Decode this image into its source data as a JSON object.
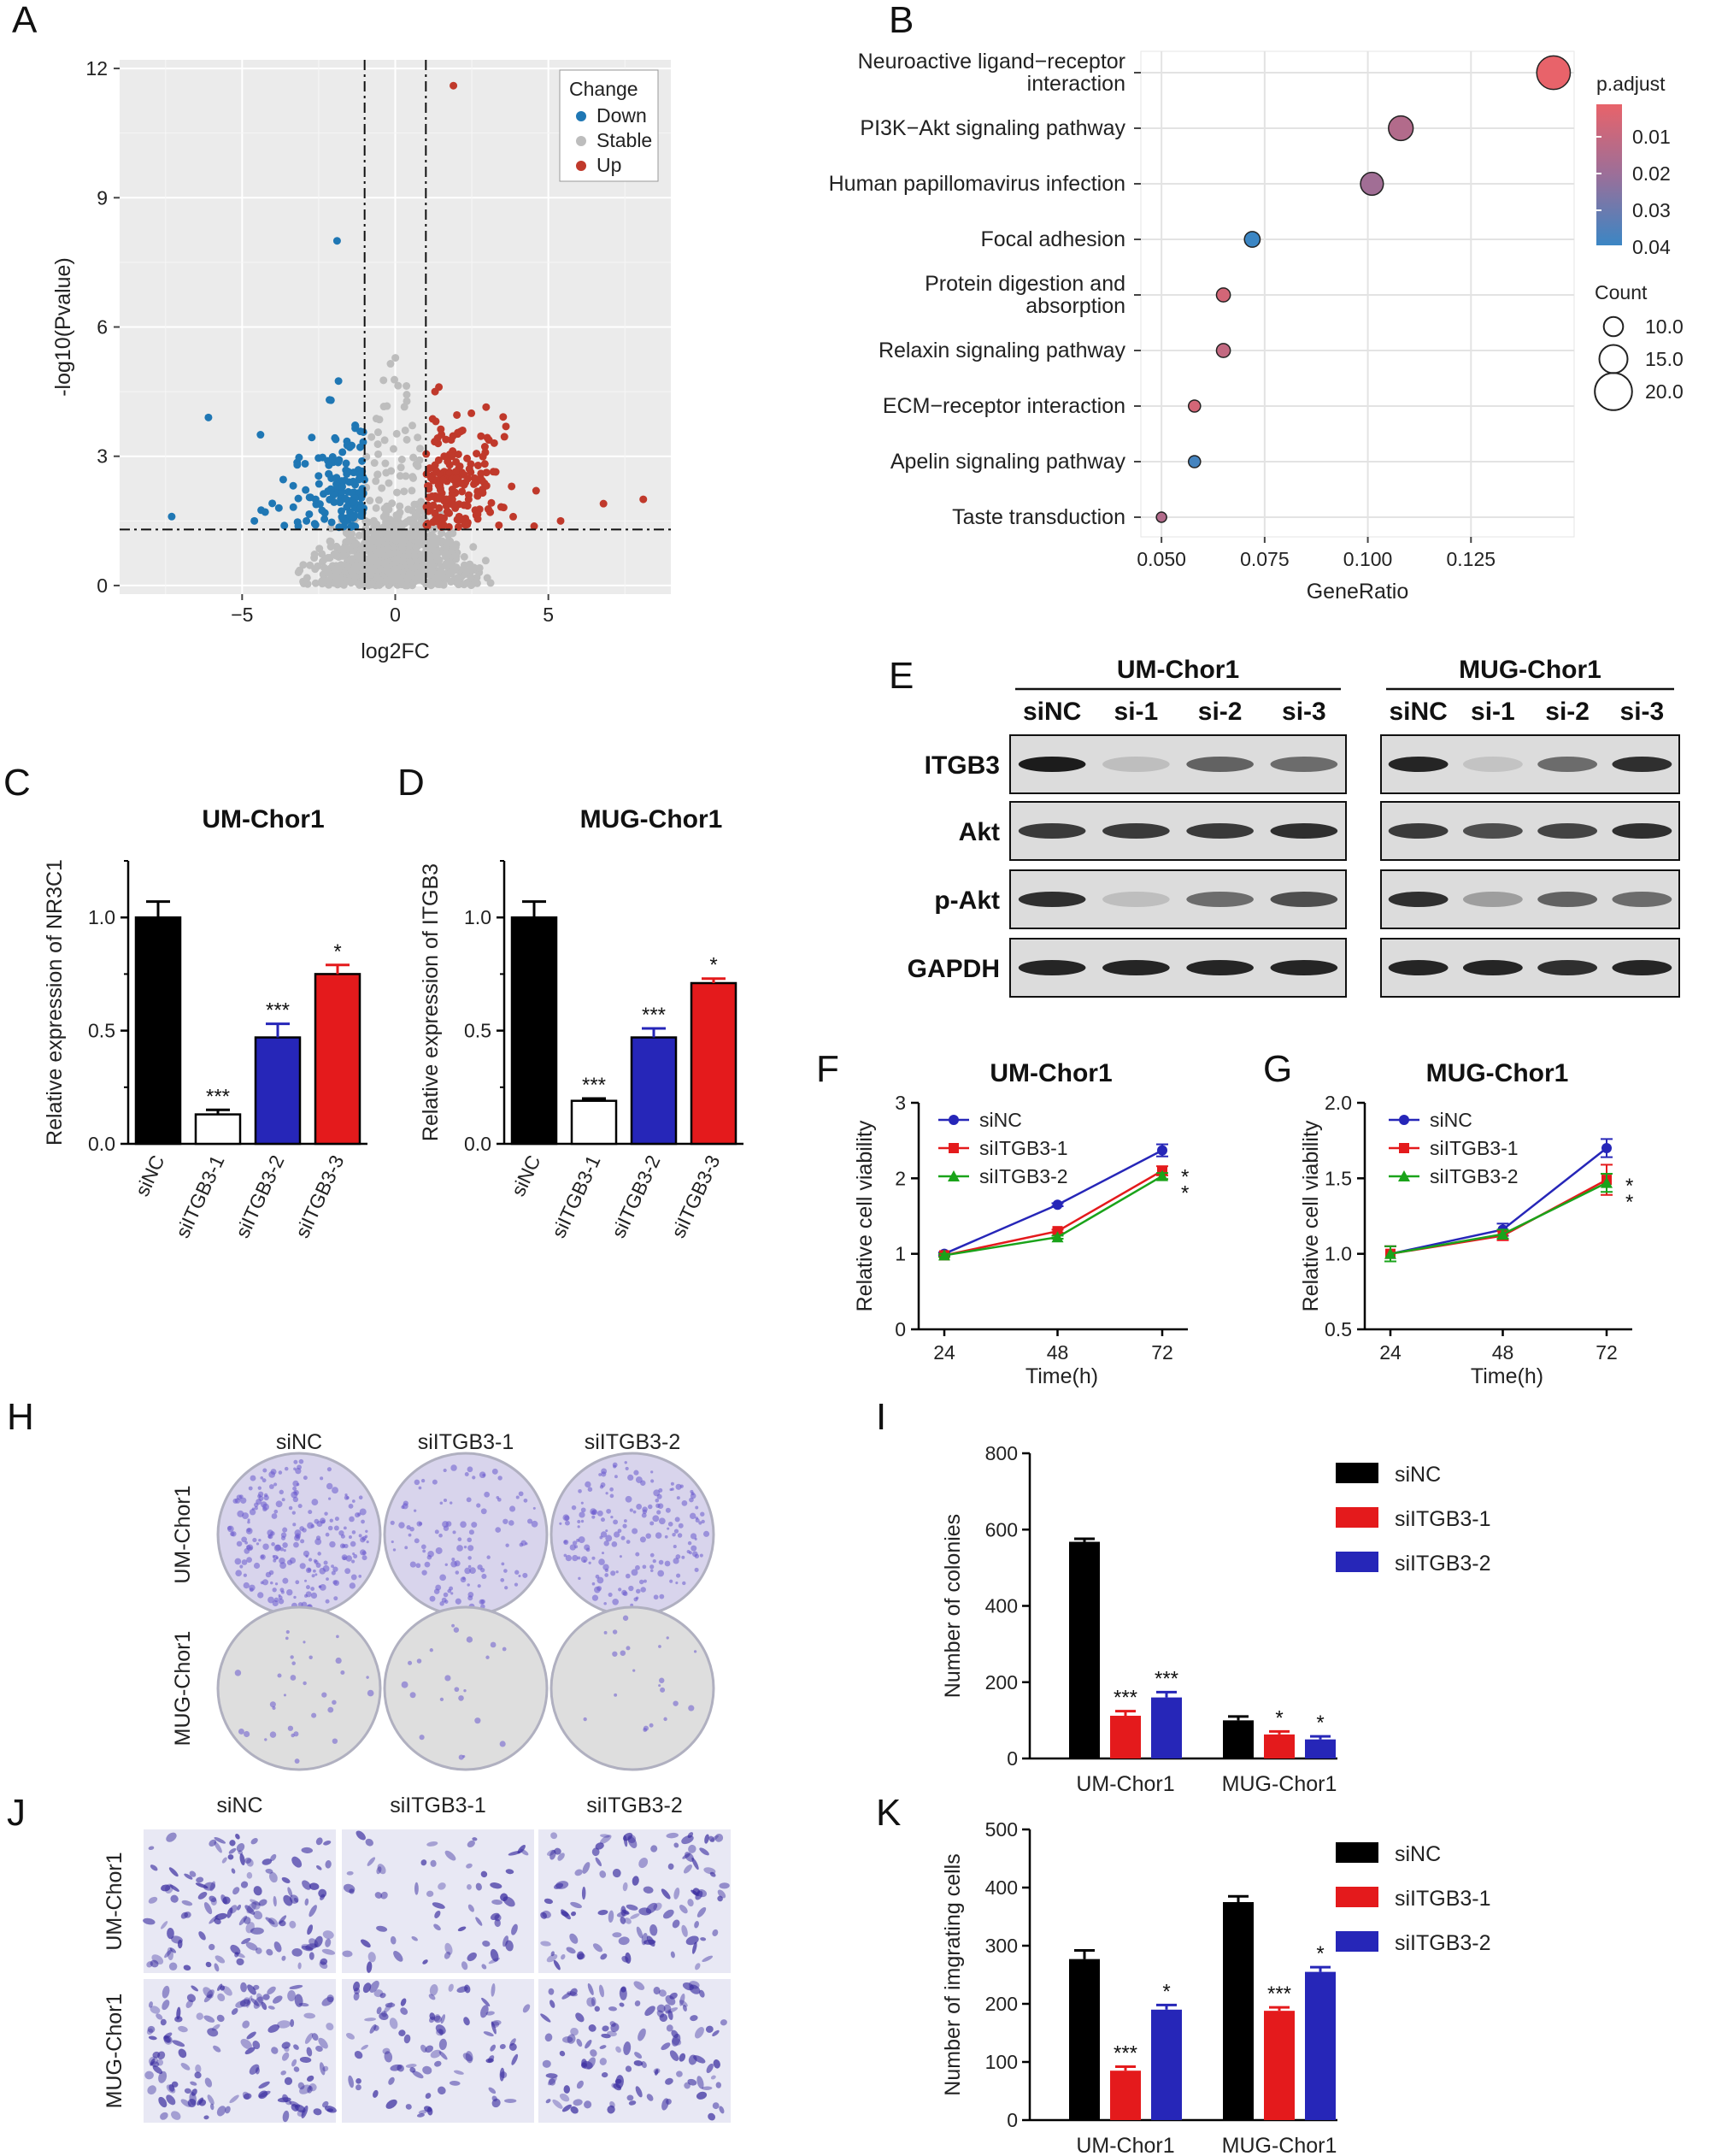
{
  "panels": {
    "A": "A",
    "B": "B",
    "C": "C",
    "D": "D",
    "E": "E",
    "F": "F",
    "G": "G",
    "H": "H",
    "I": "I",
    "J": "J",
    "K": "K"
  },
  "colors": {
    "black": "#000000",
    "red": "#e41a1c",
    "blue": "#2626b8",
    "green": "#1aa31a",
    "volcano_down": "#1f77b4",
    "volcano_stable": "#bdbdbd",
    "volcano_up": "#c0392b",
    "padj_low": "#e8636a",
    "padj_high": "#3b86c4"
  },
  "chart_data": [
    {
      "id": "A",
      "type": "scatter",
      "title": "",
      "xlabel": "log2FC",
      "ylabel": "-log10(Pvalue)",
      "xlim": [
        -9,
        9
      ],
      "ylim": [
        -0.2,
        12.2
      ],
      "xticks": [
        -5,
        0,
        5
      ],
      "yticks": [
        0,
        3,
        6,
        9,
        12
      ],
      "thresholds": {
        "x": [
          -1,
          1
        ],
        "y": 1.3
      },
      "legend_title": "Change",
      "legend": [
        "Down",
        "Stable",
        "Up"
      ],
      "highlight_points": {
        "Down": [
          [
            -1.9,
            8.0
          ],
          [
            -6.1,
            3.9
          ],
          [
            -4.4,
            3.5
          ],
          [
            -7.3,
            1.6
          ],
          [
            -4.6,
            1.5
          ],
          [
            -3.2,
            2.8
          ],
          [
            -2.1,
            4.3
          ],
          [
            -1.3,
            3.7
          ],
          [
            -2.6,
            2.0
          ],
          [
            -3.8,
            1.8
          ],
          [
            -1.5,
            2.4
          ],
          [
            -2.9,
            1.5
          ]
        ],
        "Up": [
          [
            1.9,
            11.6
          ],
          [
            1.3,
            4.5
          ],
          [
            2.2,
            3.6
          ],
          [
            3.8,
            2.3
          ],
          [
            4.6,
            2.2
          ],
          [
            6.8,
            1.9
          ],
          [
            8.1,
            2.0
          ],
          [
            5.4,
            1.5
          ],
          [
            2.8,
            2.6
          ],
          [
            1.6,
            3.0
          ],
          [
            3.1,
            1.7
          ],
          [
            2.4,
            2.1
          ]
        ]
      }
    },
    {
      "id": "B",
      "type": "scatter",
      "title": "",
      "xlabel": "GeneRatio",
      "ylabel": "",
      "xlim": [
        0.045,
        0.15
      ],
      "xticks": [
        0.05,
        0.075,
        0.1,
        0.125
      ],
      "xticklabels": [
        "0.050",
        "0.075",
        "0.100",
        "0.125"
      ],
      "categories": [
        "Neuroactive ligand−receptor interaction",
        "PI3K−Akt signaling pathway",
        "Human papillomavirus infection",
        "Focal adhesion",
        "Protein digestion and absorption",
        "Relaxin signaling pathway",
        "ECM−receptor interaction",
        "Apelin signaling pathway",
        "Taste transduction"
      ],
      "category_lines": [
        [
          "Neuroactive ligand−receptor",
          "interaction"
        ],
        [
          "PI3K−Akt signaling pathway"
        ],
        [
          "Human papillomavirus infection"
        ],
        [
          "Focal adhesion"
        ],
        [
          "Protein digestion and",
          "absorption"
        ],
        [
          "Relaxin signaling pathway"
        ],
        [
          "ECM−receptor interaction"
        ],
        [
          "Apelin signaling pathway"
        ],
        [
          "Taste transduction"
        ]
      ],
      "gene_ratio": [
        0.145,
        0.108,
        0.101,
        0.072,
        0.065,
        0.065,
        0.058,
        0.058,
        0.05
      ],
      "p_adjust": [
        0.005,
        0.018,
        0.022,
        0.042,
        0.01,
        0.014,
        0.01,
        0.04,
        0.018
      ],
      "count": [
        20,
        15,
        14,
        10,
        9,
        9,
        8,
        8,
        7
      ],
      "colorbar_title": "p.adjust",
      "colorbar_ticks": [
        "0.01",
        "0.02",
        "0.03",
        "0.04"
      ],
      "size_title": "Count",
      "size_labels": [
        "10.0",
        "15.0",
        "20.0"
      ]
    },
    {
      "id": "C",
      "type": "bar",
      "title": "UM-Chor1",
      "ylabel": "Relative expression  of NR3C1",
      "categories": [
        "siNC",
        "siITGB3-1",
        "siITGB3-2",
        "siITGB3-3"
      ],
      "values": [
        1.0,
        0.13,
        0.47,
        0.75
      ],
      "errors": [
        0.07,
        0.02,
        0.06,
        0.04
      ],
      "significance": [
        "",
        "***",
        "***",
        "*"
      ],
      "ylim": [
        0,
        1.25
      ],
      "yticks": [
        "0.0",
        "0.5",
        "1.0"
      ]
    },
    {
      "id": "D",
      "type": "bar",
      "title": "MUG-Chor1",
      "ylabel": "Relative expression  of ITGB3",
      "categories": [
        "siNC",
        "siITGB3-1",
        "siITGB3-2",
        "siITGB3-3"
      ],
      "values": [
        1.0,
        0.19,
        0.47,
        0.71
      ],
      "errors": [
        0.07,
        0.01,
        0.04,
        0.02
      ],
      "significance": [
        "",
        "***",
        "***",
        "*"
      ],
      "ylim": [
        0,
        1.25
      ],
      "yticks": [
        "0.0",
        "0.5",
        "1.0"
      ]
    },
    {
      "id": "F",
      "type": "line",
      "title": "UM-Chor1",
      "xlabel": "Time(h)",
      "ylabel": "Relative cell viability",
      "x": [
        "24",
        "48",
        "72"
      ],
      "ylim": [
        0,
        3
      ],
      "yticks": [
        "0",
        "1",
        "2",
        "3"
      ],
      "series": [
        {
          "name": "siNC",
          "values": [
            1.0,
            1.65,
            2.37
          ],
          "errors": [
            0.02,
            0.02,
            0.08
          ]
        },
        {
          "name": "siITGB3-1",
          "values": [
            0.98,
            1.3,
            2.1
          ],
          "errors": [
            0.02,
            0.02,
            0.06
          ]
        },
        {
          "name": "siITGB3-2",
          "values": [
            0.98,
            1.22,
            2.03
          ],
          "errors": [
            0.02,
            0.02,
            0.04
          ]
        }
      ],
      "significance": [
        "*",
        "*"
      ]
    },
    {
      "id": "G",
      "type": "line",
      "title": "MUG-Chor1",
      "xlabel": "Time(h)",
      "ylabel": "Relative cell viability",
      "x": [
        "24",
        "48",
        "72"
      ],
      "ylim": [
        0.5,
        2.0
      ],
      "yticks": [
        "0.5",
        "1.0",
        "1.5",
        "2.0"
      ],
      "series": [
        {
          "name": "siNC",
          "values": [
            1.0,
            1.16,
            1.7
          ],
          "errors": [
            0.05,
            0.04,
            0.06
          ]
        },
        {
          "name": "siITGB3-1",
          "values": [
            1.0,
            1.12,
            1.49
          ],
          "errors": [
            0.05,
            0.03,
            0.1
          ]
        },
        {
          "name": "siITGB3-2",
          "values": [
            1.0,
            1.13,
            1.47
          ],
          "errors": [
            0.05,
            0.03,
            0.06
          ]
        }
      ],
      "significance": [
        "*",
        "*"
      ]
    },
    {
      "id": "I",
      "type": "bar",
      "title": "",
      "ylabel": "Number of colonies",
      "categories": [
        "UM-Chor1",
        "MUG-Chor1"
      ],
      "series": [
        {
          "name": "siNC",
          "values": [
            568,
            100
          ],
          "errors": [
            8,
            10
          ]
        },
        {
          "name": "siITGB3-1",
          "values": [
            112,
            63
          ],
          "errors": [
            12,
            8
          ]
        },
        {
          "name": "siITGB3-2",
          "values": [
            160,
            50
          ],
          "errors": [
            14,
            8
          ]
        }
      ],
      "significance": [
        [
          "",
          "***",
          "***"
        ],
        [
          "",
          "*",
          "*"
        ]
      ],
      "ylim": [
        0,
        800
      ],
      "yticks": [
        "0",
        "200",
        "400",
        "600",
        "800"
      ]
    },
    {
      "id": "K",
      "type": "bar",
      "title": "",
      "ylabel": "Number of imgrating cells",
      "categories": [
        "UM-Chor1",
        "MUG-Chor1"
      ],
      "series": [
        {
          "name": "siNC",
          "values": [
            277,
            375
          ],
          "errors": [
            15,
            10
          ]
        },
        {
          "name": "siITGB3-1",
          "values": [
            85,
            188
          ],
          "errors": [
            7,
            6
          ]
        },
        {
          "name": "siITGB3-2",
          "values": [
            190,
            255
          ],
          "errors": [
            8,
            8
          ]
        }
      ],
      "significance": [
        [
          "",
          "***",
          "*"
        ],
        [
          "",
          "***",
          "*"
        ]
      ],
      "ylim": [
        0,
        500
      ],
      "yticks": [
        "0",
        "100",
        "200",
        "300",
        "400",
        "500"
      ]
    }
  ],
  "western_blot": {
    "groups": [
      "UM-Chor1",
      "MUG-Chor1"
    ],
    "lanes": [
      "siNC",
      "si-1",
      "si-2",
      "si-3"
    ],
    "proteins": [
      "ITGB3",
      "Akt",
      "p-Akt",
      "GAPDH"
    ],
    "intensity": {
      "UM-Chor1": [
        [
          0.95,
          0.15,
          0.6,
          0.55
        ],
        [
          0.8,
          0.8,
          0.8,
          0.85
        ],
        [
          0.85,
          0.15,
          0.55,
          0.7
        ],
        [
          0.9,
          0.9,
          0.9,
          0.9
        ]
      ],
      "MUG-Chor1": [
        [
          0.9,
          0.12,
          0.55,
          0.85
        ],
        [
          0.8,
          0.7,
          0.75,
          0.85
        ],
        [
          0.85,
          0.3,
          0.6,
          0.55
        ],
        [
          0.9,
          0.9,
          0.85,
          0.9
        ]
      ]
    }
  },
  "colony_assay": {
    "columns": [
      "siNC",
      "siITGB3-1",
      "siITGB3-2"
    ],
    "rows": [
      "UM-Chor1",
      "MUG-Chor1"
    ],
    "density": [
      [
        0.9,
        0.45,
        0.7
      ],
      [
        0.12,
        0.08,
        0.08
      ]
    ]
  },
  "migration_assay": {
    "columns": [
      "siNC",
      "siITGB3-1",
      "siITGB3-2"
    ],
    "rows": [
      "UM-Chor1",
      "MUG-Chor1"
    ],
    "density": [
      [
        0.85,
        0.4,
        0.7
      ],
      [
        0.95,
        0.6,
        0.8
      ]
    ]
  }
}
